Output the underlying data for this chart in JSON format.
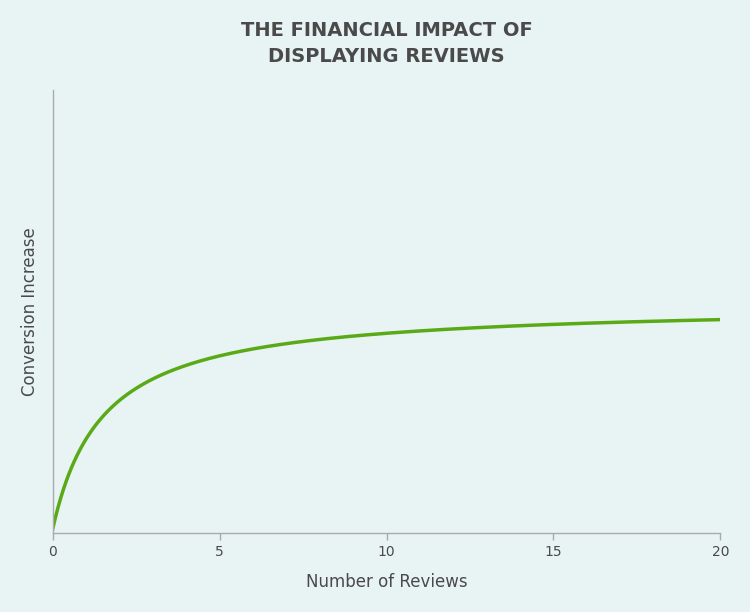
{
  "title": "THE FINANCIAL IMPACT OF\nDISPLAYING REVIEWS",
  "xlabel": "Number of Reviews",
  "ylabel": "Conversion Increase",
  "background_color": "#e8f4f4",
  "line_color": "#5aaa18",
  "line_width": 2.5,
  "x_min": 0,
  "x_max": 20,
  "x_ticks": [
    0,
    5,
    10,
    15,
    20
  ],
  "title_fontsize": 14,
  "axis_label_fontsize": 12,
  "text_color": "#4a4a4a",
  "spine_color": "#aaaaaa",
  "curve_a": 1.0,
  "curve_k": 1.5
}
